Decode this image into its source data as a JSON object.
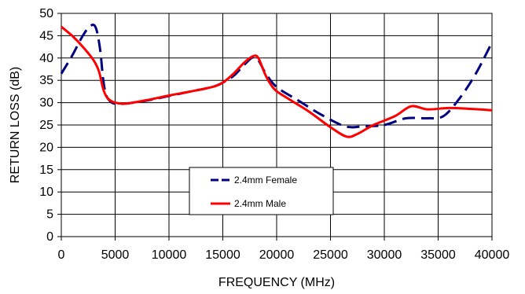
{
  "chart_data": {
    "type": "line",
    "title": "",
    "xlabel": "FREQUENCY (MHz)",
    "ylabel": "RETURN LOSS (dB)",
    "xlim": [
      0,
      40000
    ],
    "ylim": [
      0,
      50
    ],
    "x_ticks": [
      0,
      5000,
      10000,
      15000,
      20000,
      25000,
      30000,
      35000,
      40000
    ],
    "y_ticks": [
      0,
      5,
      10,
      15,
      20,
      25,
      30,
      35,
      40,
      45,
      50
    ],
    "grid": true,
    "legend_position": "lower-center",
    "series": [
      {
        "name": "2.4mm Female",
        "color": "#000080",
        "style": "dashed",
        "points": [
          [
            0,
            36.5
          ],
          [
            1000,
            40.5
          ],
          [
            2000,
            45
          ],
          [
            2700,
            47.2
          ],
          [
            3200,
            46.8
          ],
          [
            3600,
            42
          ],
          [
            3900,
            35
          ],
          [
            4200,
            31.5
          ],
          [
            4700,
            30
          ],
          [
            5200,
            29.8
          ],
          [
            6000,
            29.8
          ],
          [
            8000,
            30.5
          ],
          [
            10000,
            31.5
          ],
          [
            12000,
            32.5
          ],
          [
            14000,
            33.5
          ],
          [
            15000,
            34.5
          ],
          [
            16000,
            36
          ],
          [
            17000,
            38.5
          ],
          [
            17800,
            40.2
          ],
          [
            18300,
            39.5
          ],
          [
            19000,
            36.5
          ],
          [
            20000,
            33.5
          ],
          [
            22000,
            30.5
          ],
          [
            24000,
            27.5
          ],
          [
            26000,
            25
          ],
          [
            27000,
            24.5
          ],
          [
            28000,
            24.7
          ],
          [
            30000,
            25
          ],
          [
            32000,
            26.5
          ],
          [
            34000,
            26.5
          ],
          [
            35500,
            27
          ],
          [
            37000,
            31
          ],
          [
            38500,
            36.5
          ],
          [
            40000,
            43.5
          ]
        ]
      },
      {
        "name": "2.4mm Male",
        "color": "#ff0000",
        "style": "solid",
        "points": [
          [
            0,
            47
          ],
          [
            1000,
            45
          ],
          [
            2000,
            42.5
          ],
          [
            3000,
            39.5
          ],
          [
            3500,
            37
          ],
          [
            3900,
            33
          ],
          [
            4300,
            31
          ],
          [
            5000,
            30
          ],
          [
            6000,
            29.8
          ],
          [
            8000,
            30.6
          ],
          [
            10000,
            31.6
          ],
          [
            12000,
            32.5
          ],
          [
            14000,
            33.5
          ],
          [
            15000,
            34.5
          ],
          [
            16000,
            36.5
          ],
          [
            17000,
            39
          ],
          [
            17800,
            40.4
          ],
          [
            18300,
            40
          ],
          [
            19000,
            36
          ],
          [
            19800,
            33
          ],
          [
            21000,
            31
          ],
          [
            23000,
            28
          ],
          [
            25000,
            24.5
          ],
          [
            26500,
            22.4
          ],
          [
            27500,
            23
          ],
          [
            29000,
            25
          ],
          [
            31000,
            27
          ],
          [
            32500,
            29.2
          ],
          [
            34000,
            28.5
          ],
          [
            36000,
            28.8
          ],
          [
            38000,
            28.6
          ],
          [
            40000,
            28.3
          ]
        ]
      }
    ]
  }
}
